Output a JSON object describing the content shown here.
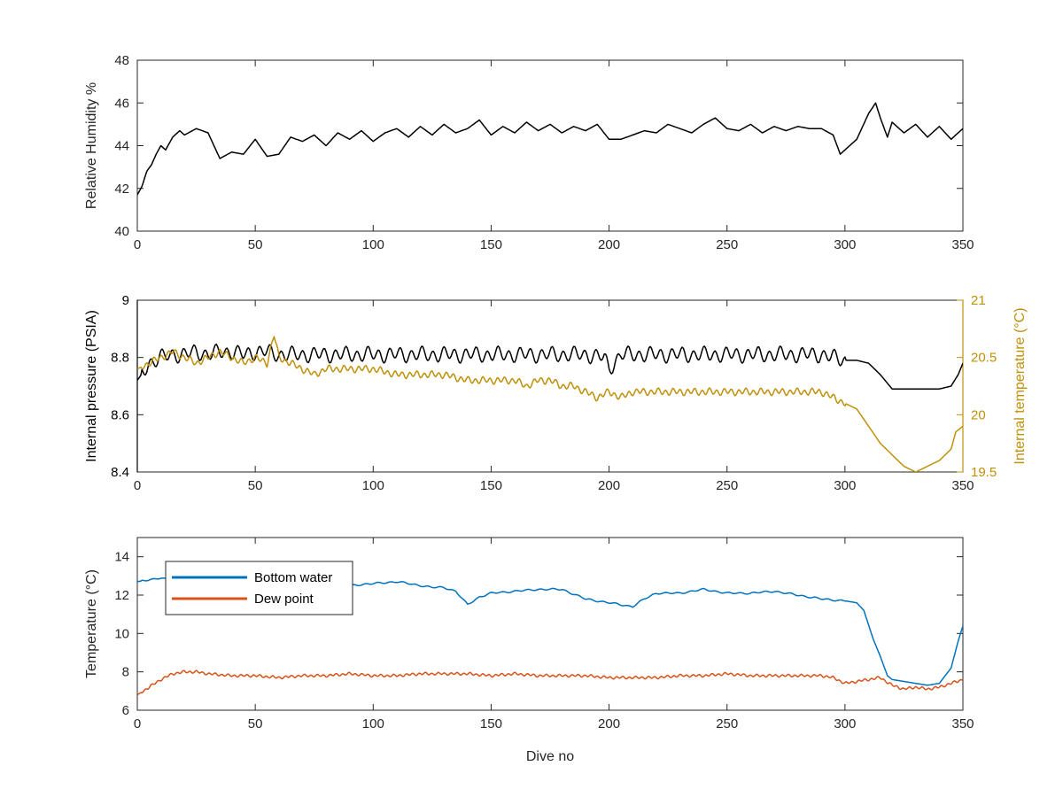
{
  "figure_colors": {
    "axis": "#262626",
    "black": "#000000",
    "blue": "#0072BD",
    "orange": "#D95319",
    "gold": "#C0900A"
  },
  "chart_data": [
    {
      "id": "humidity",
      "type": "line",
      "xlim": [
        0,
        350
      ],
      "ylim": [
        40,
        48
      ],
      "xticks": [
        0,
        50,
        100,
        150,
        200,
        250,
        300,
        350
      ],
      "yticks": [
        40,
        42,
        44,
        46,
        48
      ],
      "xlabel": "",
      "ylabel": "Relative Humidity %",
      "grid": false,
      "series": [
        {
          "color": "#000000",
          "x": [
            0,
            2,
            4,
            6,
            8,
            10,
            12,
            15,
            18,
            20,
            25,
            30,
            35,
            40,
            45,
            50,
            55,
            60,
            65,
            70,
            75,
            80,
            85,
            90,
            95,
            100,
            105,
            110,
            115,
            120,
            125,
            130,
            135,
            140,
            145,
            150,
            155,
            160,
            165,
            170,
            175,
            180,
            185,
            190,
            195,
            200,
            205,
            210,
            215,
            220,
            225,
            230,
            235,
            240,
            245,
            250,
            255,
            260,
            265,
            270,
            275,
            280,
            285,
            290,
            295,
            298,
            300,
            305,
            310,
            313,
            315,
            318,
            320,
            325,
            330,
            335,
            340,
            345,
            350
          ],
          "y": [
            41.7,
            42.1,
            42.8,
            43.1,
            43.6,
            44.0,
            43.8,
            44.4,
            44.7,
            44.5,
            44.8,
            44.6,
            43.4,
            43.7,
            43.6,
            44.3,
            43.5,
            43.6,
            44.4,
            44.2,
            44.5,
            44.0,
            44.6,
            44.3,
            44.7,
            44.2,
            44.6,
            44.8,
            44.4,
            44.9,
            44.5,
            45.0,
            44.6,
            44.8,
            45.2,
            44.5,
            44.9,
            44.6,
            45.1,
            44.7,
            45.0,
            44.6,
            44.9,
            44.7,
            45.0,
            44.3,
            44.3,
            44.5,
            44.7,
            44.6,
            45.0,
            44.8,
            44.6,
            45.0,
            45.3,
            44.8,
            44.7,
            45.0,
            44.6,
            44.9,
            44.7,
            44.9,
            44.8,
            44.8,
            44.5,
            43.6,
            43.8,
            44.3,
            45.5,
            46.0,
            45.3,
            44.4,
            45.1,
            44.6,
            45.0,
            44.4,
            44.9,
            44.3,
            44.8
          ]
        }
      ]
    },
    {
      "id": "pressure",
      "type": "line",
      "xlim": [
        0,
        350
      ],
      "ylim": [
        8.4,
        9
      ],
      "ylim_right": [
        19.5,
        21
      ],
      "xticks": [
        0,
        50,
        100,
        150,
        200,
        250,
        300,
        350
      ],
      "yticks": [
        8.4,
        8.6,
        8.8,
        9
      ],
      "yticks_right": [
        19.5,
        20,
        20.5,
        21
      ],
      "xlabel": "",
      "ylabel": "Internal pressure (PSIA)",
      "ylabel_right": "Internal temperature (°C)",
      "grid": false,
      "series": [
        {
          "axis": "left",
          "color": "#000000",
          "x": [
            0,
            5,
            10,
            15,
            20,
            25,
            30,
            35,
            40,
            45,
            50,
            55,
            60,
            70,
            80,
            90,
            100,
            110,
            120,
            130,
            140,
            150,
            160,
            170,
            180,
            190,
            198,
            200,
            205,
            210,
            220,
            230,
            240,
            250,
            260,
            270,
            280,
            290,
            295,
            300,
            305,
            310,
            315,
            320,
            325,
            330,
            335,
            340,
            345,
            348,
            350
          ],
          "y": [
            8.72,
            8.78,
            8.8,
            8.81,
            8.81,
            8.82,
            8.81,
            8.82,
            8.82,
            8.81,
            8.82,
            8.82,
            8.81,
            8.81,
            8.81,
            8.81,
            8.81,
            8.81,
            8.81,
            8.81,
            8.81,
            8.81,
            8.81,
            8.81,
            8.81,
            8.81,
            8.8,
            8.76,
            8.81,
            8.81,
            8.81,
            8.81,
            8.81,
            8.81,
            8.81,
            8.81,
            8.81,
            8.81,
            8.8,
            8.79,
            8.79,
            8.78,
            8.74,
            8.69,
            8.69,
            8.69,
            8.69,
            8.69,
            8.7,
            8.74,
            8.78
          ],
          "osc_amp": 0.03,
          "osc_period": 4.6,
          "osc_range": [
            2,
            300
          ]
        },
        {
          "axis": "right",
          "color": "#C0900A",
          "x": [
            0,
            5,
            10,
            15,
            20,
            25,
            30,
            35,
            40,
            45,
            50,
            55,
            58,
            60,
            65,
            70,
            75,
            80,
            90,
            100,
            110,
            120,
            130,
            140,
            150,
            155,
            160,
            165,
            170,
            175,
            180,
            185,
            190,
            195,
            200,
            205,
            210,
            220,
            230,
            240,
            250,
            260,
            270,
            280,
            290,
            295,
            300,
            305,
            310,
            315,
            320,
            325,
            330,
            335,
            340,
            345,
            347,
            350
          ],
          "y": [
            20.4,
            20.45,
            20.5,
            20.55,
            20.5,
            20.45,
            20.5,
            20.55,
            20.5,
            20.45,
            20.5,
            20.45,
            20.7,
            20.5,
            20.45,
            20.4,
            20.35,
            20.4,
            20.4,
            20.4,
            20.35,
            20.35,
            20.35,
            20.3,
            20.3,
            20.3,
            20.3,
            20.25,
            20.3,
            20.3,
            20.25,
            20.25,
            20.2,
            20.15,
            20.2,
            20.15,
            20.2,
            20.2,
            20.2,
            20.2,
            20.2,
            20.2,
            20.2,
            20.2,
            20.2,
            20.15,
            20.1,
            20.05,
            19.9,
            19.75,
            19.65,
            19.55,
            19.5,
            19.55,
            19.6,
            19.7,
            19.85,
            19.9
          ],
          "osc_amp": 0.035,
          "osc_period": 3.1,
          "osc_range": [
            2,
            300
          ]
        }
      ]
    },
    {
      "id": "temperature",
      "type": "line",
      "xlim": [
        0,
        350
      ],
      "ylim": [
        6,
        15
      ],
      "xticks": [
        0,
        50,
        100,
        150,
        200,
        250,
        300,
        350
      ],
      "yticks": [
        6,
        8,
        10,
        12,
        14
      ],
      "xlabel": "Dive no",
      "ylabel": "Temperature (°C)",
      "grid": false,
      "legend_position": "top-left",
      "series": [
        {
          "name": "Bottom water",
          "color": "#0072BD",
          "x": [
            0,
            5,
            10,
            15,
            20,
            30,
            40,
            50,
            60,
            70,
            80,
            90,
            100,
            110,
            120,
            125,
            130,
            135,
            140,
            145,
            150,
            160,
            170,
            180,
            190,
            200,
            205,
            210,
            215,
            220,
            230,
            240,
            250,
            260,
            270,
            280,
            290,
            300,
            305,
            308,
            312,
            315,
            318,
            320,
            325,
            330,
            335,
            340,
            345,
            348,
            350
          ],
          "y": [
            12.7,
            12.8,
            12.9,
            12.7,
            12.7,
            12.6,
            12.6,
            12.6,
            12.5,
            12.5,
            12.5,
            12.5,
            12.6,
            12.7,
            12.5,
            12.4,
            12.4,
            12.2,
            11.5,
            11.9,
            12.1,
            12.2,
            12.3,
            12.3,
            11.8,
            11.6,
            11.5,
            11.4,
            11.8,
            12.1,
            12.1,
            12.3,
            12.1,
            12.1,
            12.2,
            12.0,
            11.8,
            11.7,
            11.6,
            11.2,
            9.7,
            8.8,
            7.8,
            7.6,
            7.5,
            7.4,
            7.3,
            7.4,
            8.2,
            9.6,
            10.4
          ],
          "osc_amp": 0.05,
          "osc_period": 5.3,
          "osc_range": [
            2,
            300
          ]
        },
        {
          "name": "Dew point",
          "color": "#D95319",
          "x": [
            0,
            5,
            10,
            15,
            20,
            25,
            30,
            40,
            50,
            60,
            70,
            80,
            90,
            100,
            110,
            120,
            130,
            140,
            150,
            160,
            170,
            180,
            190,
            200,
            210,
            220,
            230,
            240,
            250,
            260,
            270,
            280,
            290,
            295,
            300,
            305,
            310,
            315,
            320,
            325,
            330,
            335,
            340,
            345,
            350
          ],
          "y": [
            6.8,
            7.2,
            7.6,
            7.9,
            8.0,
            8.0,
            7.9,
            7.8,
            7.8,
            7.7,
            7.8,
            7.8,
            7.9,
            7.8,
            7.8,
            7.9,
            7.9,
            7.9,
            7.8,
            7.9,
            7.8,
            7.8,
            7.8,
            7.7,
            7.7,
            7.7,
            7.8,
            7.8,
            7.9,
            7.8,
            7.8,
            7.8,
            7.8,
            7.7,
            7.4,
            7.5,
            7.6,
            7.7,
            7.3,
            7.1,
            7.2,
            7.1,
            7.2,
            7.4,
            7.6
          ],
          "osc_amp": 0.08,
          "osc_period": 2.7,
          "osc_range": [
            2,
            350
          ]
        }
      ]
    }
  ]
}
